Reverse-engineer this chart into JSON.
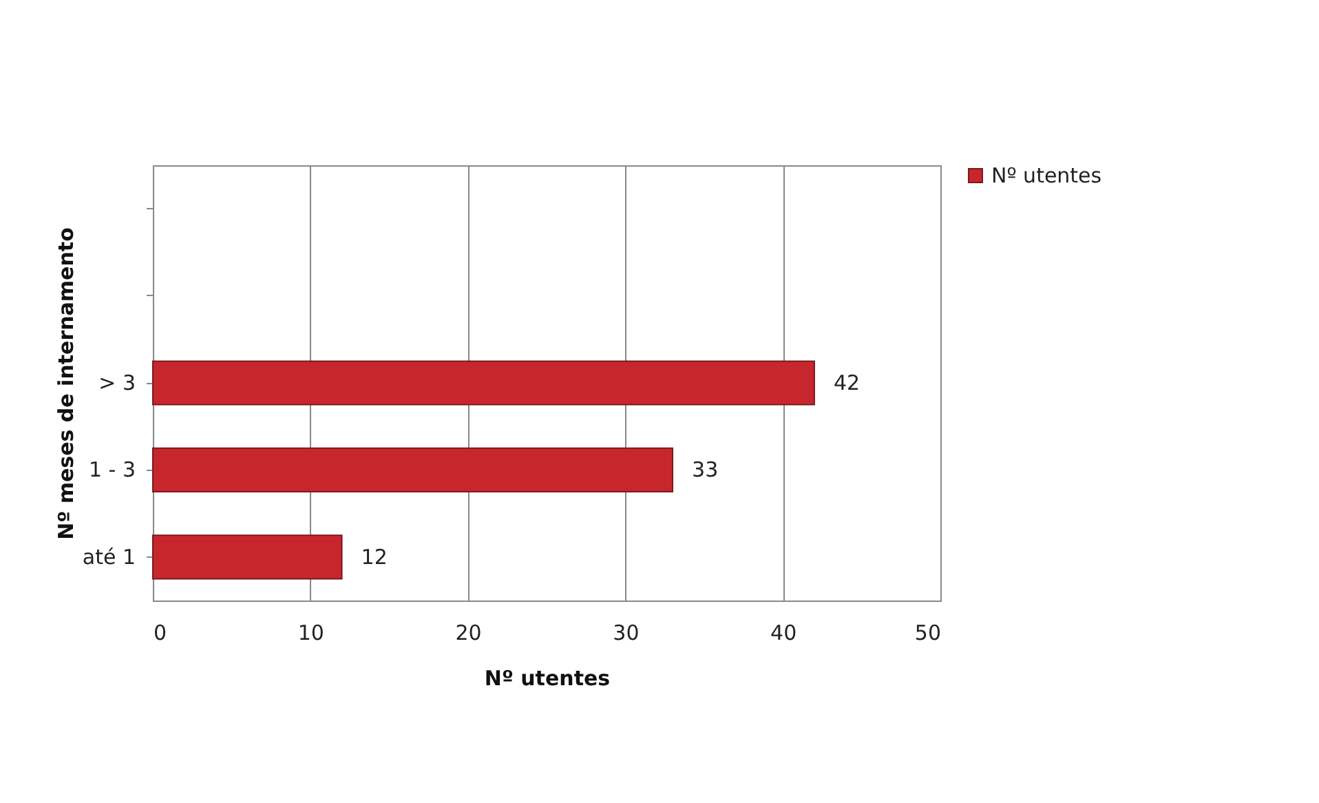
{
  "chart_data": {
    "type": "bar",
    "orientation": "horizontal",
    "categories": [
      null,
      null,
      "> 3",
      "1 - 3",
      "até 1"
    ],
    "series": [
      {
        "name": "Nº utentes",
        "color": "#c8262d",
        "values": [
          null,
          null,
          42,
          33,
          12
        ]
      }
    ],
    "xlabel": "Nº utentes",
    "ylabel": "Nº meses de internamento",
    "xlim": [
      0,
      50
    ],
    "xticks": [
      0,
      10,
      20,
      30,
      40,
      50
    ],
    "grid": "x",
    "legend": "right",
    "data_labels": true
  }
}
